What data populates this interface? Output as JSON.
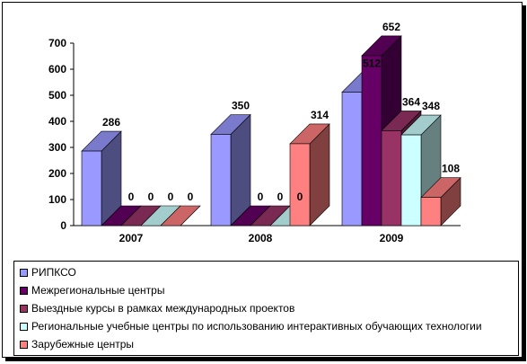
{
  "chart_data": {
    "type": "bar",
    "categories": [
      "2007",
      "2008",
      "2009"
    ],
    "series": [
      {
        "name": "РИПКСО",
        "values": [
          286,
          350,
          512
        ]
      },
      {
        "name": "Межрегиональные центры",
        "values": [
          0,
          0,
          652
        ]
      },
      {
        "name": "Выездные курсы в рамках международных проектов",
        "values": [
          0,
          0,
          364
        ]
      },
      {
        "name": "Региональные учебные центры по использованию интерактивных обучающих технологии",
        "values": [
          0,
          0,
          348
        ]
      },
      {
        "name": "Зарубежные центры",
        "values": [
          0,
          314,
          108
        ]
      }
    ],
    "data_labels": {
      "2007": [
        "286",
        "0",
        "0",
        "0",
        "0"
      ],
      "2008": [
        "350",
        "0",
        "0",
        "0",
        "314"
      ],
      "2009": [
        "512",
        "652",
        "364",
        "348",
        "108"
      ]
    },
    "yticks": [
      "0",
      "100",
      "200",
      "300",
      "400",
      "500",
      "600",
      "700"
    ],
    "ylim": [
      0,
      700
    ],
    "grid": false,
    "legend_position": "bottom",
    "style": "3d-clustered",
    "colors": {
      "series_front": [
        "#9999ff",
        "#660066",
        "#993366",
        "#ccffff",
        "#ff8080"
      ],
      "series_side": [
        "#4d4d80",
        "#330033",
        "#4d1a33",
        "#668080",
        "#804040"
      ],
      "series_top": [
        "#7a7acc",
        "#520052",
        "#7a2952",
        "#a3cccc",
        "#cc6666"
      ]
    }
  }
}
